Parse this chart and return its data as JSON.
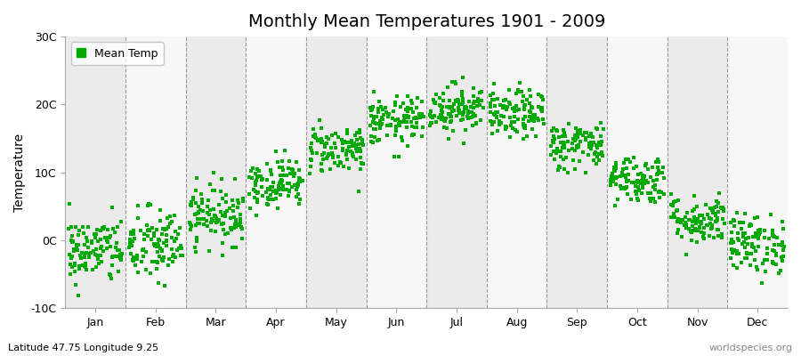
{
  "title": "Monthly Mean Temperatures 1901 - 2009",
  "ylabel": "Temperature",
  "xlabel": "",
  "footnote_left": "Latitude 47.75 Longitude 9.25",
  "footnote_right": "worldspecies.org",
  "legend_label": "Mean Temp",
  "dot_color": "#00AA00",
  "dot_size": 6,
  "ylim": [
    -10,
    30
  ],
  "yticks": [
    -10,
    0,
    10,
    20,
    30
  ],
  "ytick_labels": [
    "-10C",
    "0C",
    "10C",
    "20C",
    "30C"
  ],
  "months": [
    "Jan",
    "Feb",
    "Mar",
    "Apr",
    "May",
    "Jun",
    "Jul",
    "Aug",
    "Sep",
    "Oct",
    "Nov",
    "Dec"
  ],
  "background_color": "#ffffff",
  "plot_bg_color": "#ffffff",
  "band_color_odd": "#ebebeb",
  "band_color_even": "#f7f7f7",
  "years": 109,
  "seed": 42,
  "monthly_mean": [
    -1.5,
    -0.8,
    3.8,
    8.5,
    13.5,
    17.5,
    19.5,
    18.5,
    14.0,
    9.0,
    3.0,
    -0.5
  ],
  "monthly_std": [
    2.5,
    2.8,
    2.2,
    1.8,
    1.8,
    1.8,
    1.8,
    1.8,
    1.8,
    1.8,
    1.8,
    2.2
  ],
  "title_fontsize": 14,
  "tick_fontsize": 9,
  "ylabel_fontsize": 10,
  "footnote_fontsize": 8
}
